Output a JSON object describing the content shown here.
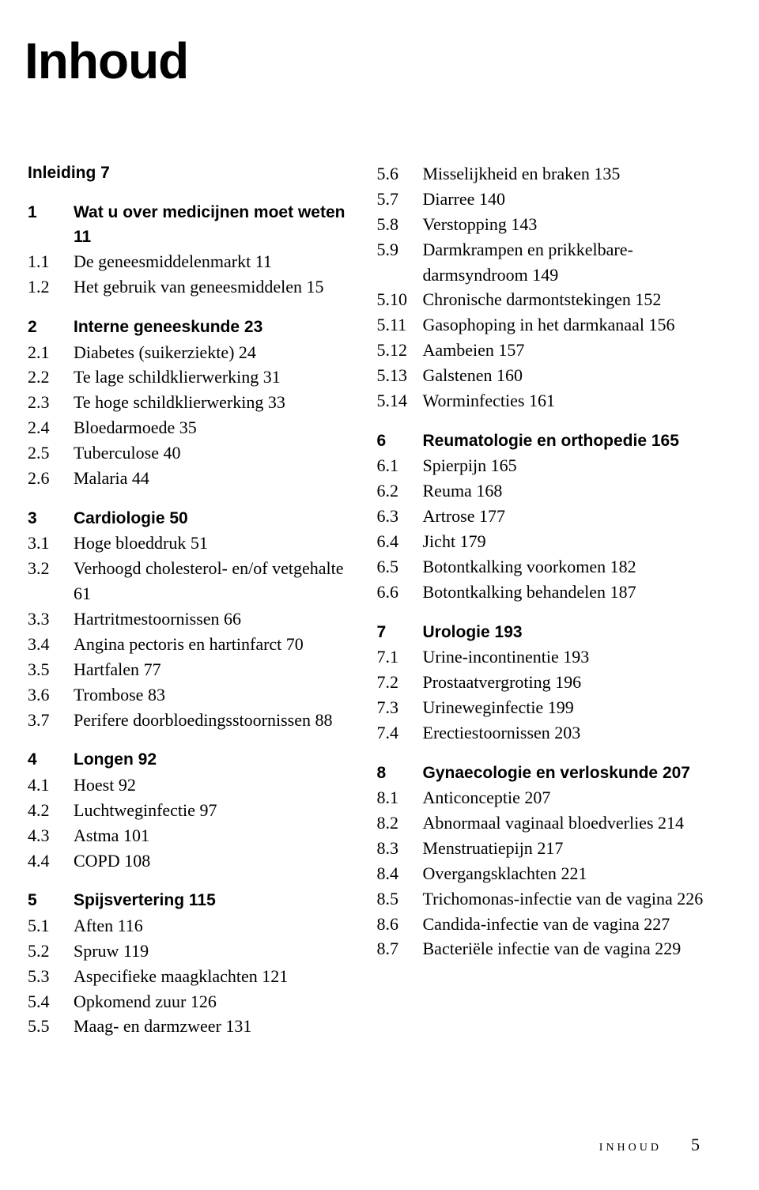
{
  "title": "Inhoud",
  "intro_label": "Inleiding",
  "intro_page": "7",
  "col_left": [
    {
      "num": "1",
      "title": "Wat u over medicijnen moet weten",
      "page": "11",
      "entries": [
        {
          "num": "1.1",
          "text": "De geneesmiddelenmarkt",
          "page": "11"
        },
        {
          "num": "1.2",
          "text": "Het gebruik van genees­middelen",
          "page": "15"
        }
      ]
    },
    {
      "num": "2",
      "title": "Interne geneeskunde",
      "page": "23",
      "entries": [
        {
          "num": "2.1",
          "text": "Diabetes (suikerziekte)",
          "page": "24"
        },
        {
          "num": "2.2",
          "text": "Te lage schildklierwerking",
          "page": "31"
        },
        {
          "num": "2.3",
          "text": "Te hoge schildklierwerking",
          "page": "33"
        },
        {
          "num": "2.4",
          "text": "Bloedarmoede",
          "page": "35"
        },
        {
          "num": "2.5",
          "text": "Tuberculose",
          "page": "40"
        },
        {
          "num": "2.6",
          "text": "Malaria",
          "page": "44"
        }
      ]
    },
    {
      "num": "3",
      "title": "Cardiologie",
      "page": "50",
      "entries": [
        {
          "num": "3.1",
          "text": "Hoge bloeddruk",
          "page": "51"
        },
        {
          "num": "3.2",
          "text": "Verhoogd cholesterol- en/of vetgehalte",
          "page": "61"
        },
        {
          "num": "3.3",
          "text": "Hartritmestoornissen",
          "page": "66"
        },
        {
          "num": "3.4",
          "text": "Angina pectoris en hartinfarct",
          "page": "70"
        },
        {
          "num": "3.5",
          "text": "Hartfalen",
          "page": "77"
        },
        {
          "num": "3.6",
          "text": "Trombose",
          "page": "83"
        },
        {
          "num": "3.7",
          "text": "Perifere doorbloedings­stoornissen",
          "page": "88"
        }
      ]
    },
    {
      "num": "4",
      "title": "Longen",
      "page": "92",
      "entries": [
        {
          "num": "4.1",
          "text": "Hoest",
          "page": "92"
        },
        {
          "num": "4.2",
          "text": "Luchtweginfectie",
          "page": "97"
        },
        {
          "num": "4.3",
          "text": "Astma",
          "page": "101"
        },
        {
          "num": "4.4",
          "text": "COPD",
          "page": "108"
        }
      ]
    },
    {
      "num": "5",
      "title": "Spijsvertering",
      "page": "115",
      "entries": [
        {
          "num": "5.1",
          "text": "Aften",
          "page": "116"
        },
        {
          "num": "5.2",
          "text": "Spruw",
          "page": "119"
        },
        {
          "num": "5.3",
          "text": "Aspecifieke maagklachten",
          "page": "121"
        },
        {
          "num": "5.4",
          "text": "Opkomend zuur",
          "page": "126"
        },
        {
          "num": "5.5",
          "text": "Maag- en darmzweer",
          "page": "131"
        }
      ]
    }
  ],
  "col_right_cont": [
    {
      "num": "5.6",
      "text": "Misselijkheid en braken",
      "page": "135"
    },
    {
      "num": "5.7",
      "text": "Diarree",
      "page": "140"
    },
    {
      "num": "5.8",
      "text": "Verstopping",
      "page": "143"
    },
    {
      "num": "5.9",
      "text": "Darmkrampen en prikkelbare­darmsyndroom",
      "page": "149"
    },
    {
      "num": "5.10",
      "text": "Chronische darmontstekingen",
      "page": "152"
    },
    {
      "num": "5.11",
      "text": "Gasophoping in het darm­kanaal",
      "page": "156"
    },
    {
      "num": "5.12",
      "text": "Aambeien",
      "page": "157"
    },
    {
      "num": "5.13",
      "text": "Galstenen",
      "page": "160"
    },
    {
      "num": "5.14",
      "text": "Worminfecties",
      "page": "161"
    }
  ],
  "col_right": [
    {
      "num": "6",
      "title": "Reumatologie en orthopedie",
      "page": "165",
      "entries": [
        {
          "num": "6.1",
          "text": "Spierpijn",
          "page": "165"
        },
        {
          "num": "6.2",
          "text": "Reuma",
          "page": "168"
        },
        {
          "num": "6.3",
          "text": "Artrose",
          "page": "177"
        },
        {
          "num": "6.4",
          "text": "Jicht",
          "page": "179"
        },
        {
          "num": "6.5",
          "text": "Botontkalking voorkomen",
          "page": "182"
        },
        {
          "num": "6.6",
          "text": "Botontkalking behandelen",
          "page": "187"
        }
      ]
    },
    {
      "num": "7",
      "title": "Urologie",
      "page": "193",
      "entries": [
        {
          "num": "7.1",
          "text": "Urine-incontinentie",
          "page": "193"
        },
        {
          "num": "7.2",
          "text": "Prostaatvergroting",
          "page": "196"
        },
        {
          "num": "7.3",
          "text": "Urineweginfectie",
          "page": "199"
        },
        {
          "num": "7.4",
          "text": "Erectiestoornissen",
          "page": "203"
        }
      ]
    },
    {
      "num": "8",
      "title": "Gynaecologie en verloskunde",
      "page": "207",
      "entries": [
        {
          "num": "8.1",
          "text": "Anticonceptie",
          "page": "207"
        },
        {
          "num": "8.2",
          "text": "Abnormaal vaginaal bloedverlies",
          "page": "214"
        },
        {
          "num": "8.3",
          "text": "Menstruatiepijn",
          "page": "217"
        },
        {
          "num": "8.4",
          "text": "Overgangsklachten",
          "page": "221"
        },
        {
          "num": "8.5",
          "text": "Trichomonas-infectie van de vagina",
          "page": "226"
        },
        {
          "num": "8.6",
          "text": "Candida-infectie van de vagina",
          "page": "227"
        },
        {
          "num": "8.7",
          "text": "Bacteriële infectie van de vagina",
          "page": "229"
        }
      ]
    }
  ],
  "footer_label": "inhoud",
  "footer_page": "5"
}
